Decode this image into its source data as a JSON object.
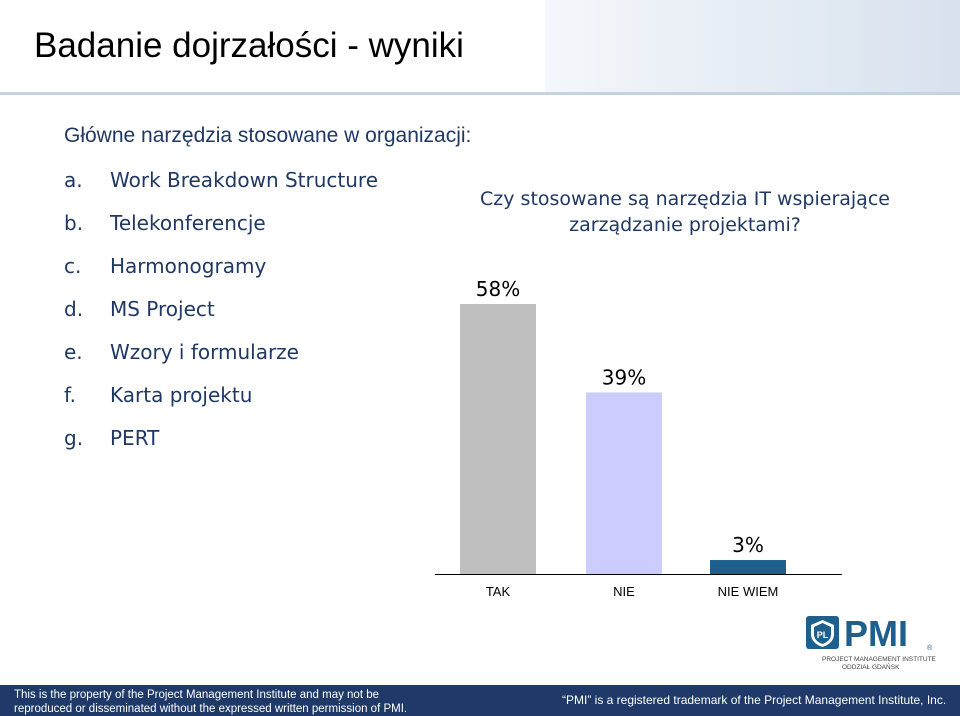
{
  "slide": {
    "title": "Badanie dojrzałości - wyniki",
    "subtitle": "Główne narzędzia stosowane w organizacji:",
    "tools": [
      {
        "marker": "a.",
        "label": "Work Breakdown Structure"
      },
      {
        "marker": "b.",
        "label": "Telekonferencje"
      },
      {
        "marker": "c.",
        "label": "Harmonogramy"
      },
      {
        "marker": "d.",
        "label": "MS Project"
      },
      {
        "marker": "e.",
        "label": "Wzory i formularze"
      },
      {
        "marker": "f.",
        "label": "Karta projektu"
      },
      {
        "marker": "g.",
        "label": "PERT"
      }
    ]
  },
  "chart_data": {
    "type": "bar",
    "title": "Czy stosowane są narzędzia IT wspierające zarządzanie projektami?",
    "categories": [
      "TAK",
      "NIE",
      "NIE WIEM"
    ],
    "values": [
      58,
      39,
      3
    ],
    "data_labels": [
      "58%",
      "39%",
      "3%"
    ],
    "colors": [
      "#bfbfbf",
      "#ccccff",
      "#1f5f8b"
    ],
    "xlabel": "",
    "ylabel": "",
    "ylim": [
      0,
      58
    ],
    "grid": false
  },
  "logo": {
    "name": "PMI",
    "caption_line1": "PROJECT MANAGEMENT INSTITUTE",
    "caption_line2": "ODDZIAŁ GDAŃSK"
  },
  "footer": {
    "left_line1": "This is the property of the Project Management Institute and may not be",
    "left_line2": "reproduced or disseminated without the expressed written permission of PMI.",
    "right": "“PMI” is a registered trademark of the Project Management Institute, Inc."
  },
  "colors": {
    "text_dark_blue": "#1f3864",
    "footer_bg": "#1f3a68",
    "logo_blue": "#1f5f8b"
  }
}
